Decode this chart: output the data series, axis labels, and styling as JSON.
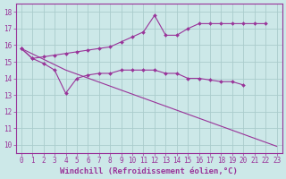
{
  "background_color": "#cce8e8",
  "grid_color": "#aacccc",
  "line_color": "#993399",
  "marker_color": "#993399",
  "xlabel": "Windchill (Refroidissement éolien,°C)",
  "xlabel_fontsize": 6.5,
  "tick_fontsize": 5.5,
  "xlim": [
    -0.5,
    23.5
  ],
  "ylim": [
    9.5,
    18.5
  ],
  "yticks": [
    10,
    11,
    12,
    13,
    14,
    15,
    16,
    17,
    18
  ],
  "xticks": [
    0,
    1,
    2,
    3,
    4,
    5,
    6,
    7,
    8,
    9,
    10,
    11,
    12,
    13,
    14,
    15,
    16,
    17,
    18,
    19,
    20,
    21,
    22,
    23
  ],
  "series": [
    {
      "x": [
        0,
        1,
        2,
        3,
        4,
        5,
        6,
        7,
        8,
        9,
        10,
        11,
        12,
        13,
        14,
        15,
        16,
        17,
        18,
        19,
        20,
        21,
        22
      ],
      "y": [
        15.8,
        15.2,
        15.3,
        15.4,
        15.5,
        15.6,
        15.7,
        15.8,
        15.9,
        16.2,
        16.5,
        16.8,
        17.8,
        16.6,
        16.6,
        17.0,
        17.3,
        17.3,
        17.3,
        17.3,
        17.3,
        17.3,
        17.3
      ]
    },
    {
      "x": [
        0,
        1,
        2,
        3,
        4,
        5,
        6,
        7,
        8,
        9,
        10,
        11,
        12,
        13,
        14,
        15,
        16,
        17,
        18,
        19,
        20
      ],
      "y": [
        15.8,
        15.2,
        14.9,
        14.5,
        13.1,
        14.0,
        14.2,
        14.3,
        14.3,
        14.5,
        14.5,
        14.5,
        14.5,
        14.3,
        14.3,
        14.0,
        14.0,
        13.9,
        13.8,
        13.8,
        13.6
      ]
    },
    {
      "x": [
        0,
        4,
        23
      ],
      "y": [
        15.8,
        14.5,
        9.9
      ]
    }
  ]
}
